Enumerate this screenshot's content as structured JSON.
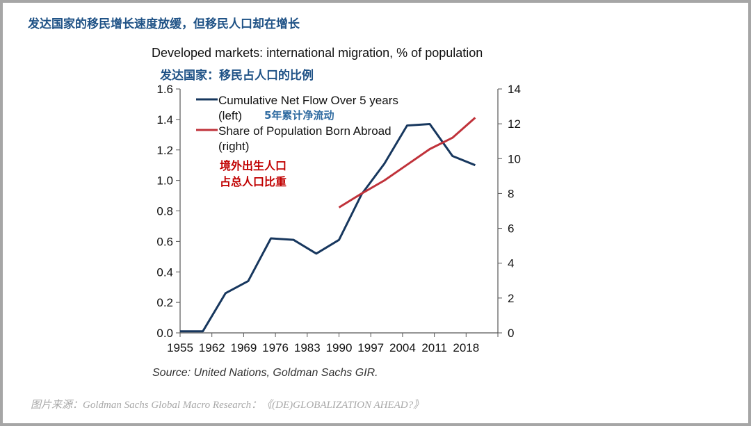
{
  "headline": "发达国家的移民增长速度放缓，但移民人口却在增长",
  "source": "Source: United Nations, Goldman Sachs GIR.",
  "credit": "图片来源：Goldman Sachs Global Macro Research：《(DE)GLOBALIZATION AHEAD?》",
  "chart_data": {
    "type": "line",
    "title": "Developed markets: international migration, % of population",
    "subtitle": "发达国家：移民占人口的比例",
    "xlim": [
      1955,
      2025
    ],
    "x_ticks": [
      "1955",
      "1962",
      "1969",
      "1976",
      "1983",
      "1990",
      "1997",
      "2004",
      "2011",
      "2018"
    ],
    "y_left": {
      "lim": [
        0,
        1.6
      ],
      "ticks": [
        "0.0",
        "0.2",
        "0.4",
        "0.6",
        "0.8",
        "1.0",
        "1.2",
        "1.4",
        "1.6"
      ]
    },
    "y_right": {
      "lim": [
        0,
        14
      ],
      "ticks": [
        "0",
        "2",
        "4",
        "6",
        "8",
        "10",
        "12",
        "14"
      ]
    },
    "grid": false,
    "legend_placement": "top-left",
    "series": [
      {
        "name": "Cumulative Net Flow Over 5 years",
        "name_line2": "(left)",
        "annotation": "5年累计净流动",
        "axis": "left",
        "color": "#17375e",
        "x": [
          1955,
          1960,
          1965,
          1970,
          1975,
          1980,
          1985,
          1990,
          1995,
          2000,
          2005,
          2010,
          2015,
          2020
        ],
        "y": [
          0.01,
          0.01,
          0.26,
          0.34,
          0.62,
          0.61,
          0.52,
          0.61,
          0.91,
          1.11,
          1.36,
          1.37,
          1.16,
          1.1
        ]
      },
      {
        "name": "Share of Population Born Abroad",
        "name_line2": "(right)",
        "annotation_lines": [
          "境外出生人口",
          "占总人口比重"
        ],
        "axis": "right",
        "color": "#c0323a",
        "x": [
          1990,
          1995,
          2000,
          2005,
          2010,
          2015,
          2020
        ],
        "y": [
          7.2,
          8.0,
          8.75,
          9.65,
          10.55,
          11.2,
          12.35
        ]
      }
    ]
  }
}
